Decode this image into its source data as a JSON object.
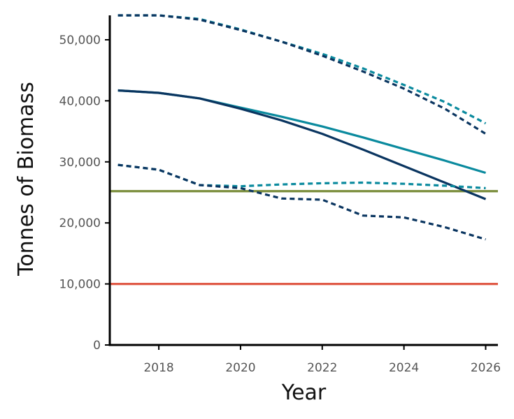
{
  "chart_data": {
    "type": "line",
    "title": "",
    "xlabel": "Year",
    "ylabel": "Tonnes of Biomass",
    "xlim": [
      2016.8,
      2026.3
    ],
    "ylim": [
      0,
      54000
    ],
    "grid": false,
    "legend": "none",
    "x_ticks": [
      2018,
      2020,
      2022,
      2024,
      2026
    ],
    "x_tick_labels": [
      "2018",
      "2020",
      "2022",
      "2024",
      "2026"
    ],
    "y_ticks": [
      0,
      10000,
      20000,
      30000,
      40000,
      50000
    ],
    "y_tick_labels": [
      "0",
      "10,000",
      "20,000",
      "30,000",
      "40,000",
      "50,000"
    ],
    "reference_lines": [
      {
        "y": 25200,
        "color": "#7a8c3a"
      },
      {
        "y": 10000,
        "color": "#e05a47"
      }
    ],
    "series": [
      {
        "color": "#0a8a9e",
        "style": "solid",
        "x": [
          2017,
          2018,
          2019,
          2020,
          2021,
          2022,
          2023,
          2024,
          2025,
          2026
        ],
        "y": [
          41700,
          41300,
          40400,
          38900,
          37400,
          35800,
          34000,
          32100,
          30200,
          28200
        ]
      },
      {
        "color": "#0a3560",
        "style": "solid",
        "x": [
          2017,
          2018,
          2019,
          2020,
          2021,
          2022,
          2023,
          2024,
          2025,
          2026
        ],
        "y": [
          41700,
          41300,
          40400,
          38700,
          36800,
          34600,
          32000,
          29300,
          26600,
          23900
        ]
      },
      {
        "color": "#0a8a9e",
        "style": "dotted",
        "x": [
          2017,
          2018,
          2019,
          2020,
          2021,
          2022,
          2023,
          2024,
          2025,
          2026
        ],
        "y": [
          54000,
          54000,
          53400,
          51700,
          49700,
          47700,
          45300,
          42600,
          39800,
          36300
        ]
      },
      {
        "color": "#0a3560",
        "style": "dotted",
        "x": [
          2017,
          2018,
          2019,
          2020,
          2021,
          2022,
          2023,
          2024,
          2025,
          2026
        ],
        "y": [
          54000,
          54000,
          53300,
          51600,
          49700,
          47400,
          44800,
          42000,
          38700,
          34600
        ]
      },
      {
        "color": "#0a8a9e",
        "style": "dotted",
        "x": [
          2017,
          2018,
          2019,
          2020,
          2021,
          2022,
          2023,
          2024,
          2025,
          2026
        ],
        "y": [
          29500,
          28700,
          26200,
          26000,
          26300,
          26500,
          26600,
          26400,
          26100,
          25700
        ]
      },
      {
        "color": "#0a3560",
        "style": "dotted",
        "x": [
          2017,
          2018,
          2019,
          2020,
          2021,
          2022,
          2023,
          2024,
          2025,
          2026
        ],
        "y": [
          29500,
          28700,
          26200,
          25700,
          24000,
          23800,
          21200,
          20900,
          19300,
          17300
        ]
      }
    ]
  }
}
